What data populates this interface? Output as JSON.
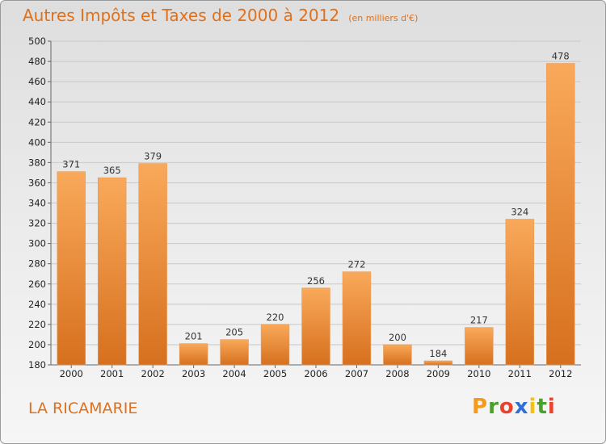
{
  "header": {
    "title": "Autres Impôts et Taxes de 2000 à 2012",
    "subtitle": "(en milliers d'€)"
  },
  "footer": {
    "place": "LA RICAMARIE",
    "logo_letters": [
      "P",
      "r",
      "o",
      "x",
      "i",
      "t",
      "i"
    ],
    "logo_colors": [
      "#f39a1f",
      "#4aa02c",
      "#e8432e",
      "#2f6fd6",
      "#f4c20d",
      "#4aa02c",
      "#e8432e"
    ]
  },
  "colors": {
    "bar_light": "#f9a95a",
    "bar_dark": "#d6701e",
    "grid": "#c8c8c8",
    "text_accent": "#e0701a"
  },
  "chart_data": {
    "type": "bar",
    "title": "Autres Impôts et Taxes de 2000 à 2012",
    "subtitle": "(en milliers d'€)",
    "xlabel": "",
    "ylabel": "",
    "categories": [
      "2000",
      "2001",
      "2002",
      "2003",
      "2004",
      "2005",
      "2006",
      "2007",
      "2008",
      "2009",
      "2010",
      "2011",
      "2012"
    ],
    "values": [
      371,
      365,
      379,
      201,
      205,
      220,
      256,
      272,
      200,
      184,
      217,
      324,
      478
    ],
    "ylim": [
      180,
      500
    ],
    "yticks": [
      180,
      200,
      220,
      240,
      260,
      280,
      300,
      320,
      340,
      360,
      380,
      400,
      420,
      440,
      460,
      480,
      500
    ],
    "grid": true,
    "data_labels": true
  }
}
